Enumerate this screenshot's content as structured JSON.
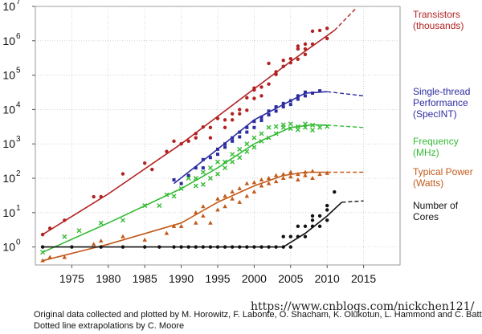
{
  "chart_data": {
    "type": "scatter",
    "y_scale": "log",
    "xlim": [
      1970,
      2020
    ],
    "ylim": [
      0.3,
      10000000
    ],
    "grid": "dotted",
    "legend_placement": "right",
    "x_ticks": [
      "1975",
      "1980",
      "1985",
      "1990",
      "1995",
      "2000",
      "2005",
      "2010",
      "2015"
    ],
    "x_tick_values": [
      1975,
      1980,
      1985,
      1990,
      1995,
      2000,
      2005,
      2010,
      2015
    ],
    "y_ticks": [
      {
        "base": "10",
        "exp": "0",
        "value": 1
      },
      {
        "base": "10",
        "exp": "1",
        "value": 10
      },
      {
        "base": "10",
        "exp": "2",
        "value": 100
      },
      {
        "base": "10",
        "exp": "3",
        "value": 1000
      },
      {
        "base": "10",
        "exp": "4",
        "value": 10000
      },
      {
        "base": "10",
        "exp": "5",
        "value": 100000
      },
      {
        "base": "10",
        "exp": "6",
        "value": 1000000
      },
      {
        "base": "10",
        "exp": "7",
        "value": 10000000
      }
    ],
    "series": [
      {
        "name_lines": [
          "Transistors",
          "(thousands)"
        ],
        "color": "#b22222",
        "marker": "circle",
        "points": [
          [
            1971,
            2.3
          ],
          [
            1972,
            3.5
          ],
          [
            1974,
            6
          ],
          [
            1978,
            29
          ],
          [
            1979,
            29
          ],
          [
            1982,
            134
          ],
          [
            1985,
            275
          ],
          [
            1986,
            180
          ],
          [
            1988,
            600
          ],
          [
            1989,
            1200
          ],
          [
            1990,
            1000
          ],
          [
            1991,
            1200
          ],
          [
            1992,
            2000
          ],
          [
            1992,
            1500
          ],
          [
            1993,
            3100
          ],
          [
            1994,
            1500
          ],
          [
            1994,
            3000
          ],
          [
            1995,
            5500
          ],
          [
            1996,
            3000
          ],
          [
            1996,
            5000
          ],
          [
            1997,
            7500
          ],
          [
            1997,
            5000
          ],
          [
            1998,
            7500
          ],
          [
            1998,
            10000
          ],
          [
            1999,
            9500
          ],
          [
            1999,
            22000
          ],
          [
            2000,
            21000
          ],
          [
            2000,
            37000
          ],
          [
            2000,
            42000
          ],
          [
            2001,
            45000
          ],
          [
            2001,
            25000
          ],
          [
            2002,
            55000
          ],
          [
            2002,
            220000
          ],
          [
            2003,
            105000
          ],
          [
            2003,
            125000
          ],
          [
            2004,
            180000
          ],
          [
            2004,
            270000
          ],
          [
            2005,
            230000
          ],
          [
            2005,
            300000
          ],
          [
            2006,
            290000
          ],
          [
            2006,
            580000
          ],
          [
            2006,
            700000
          ],
          [
            2007,
            400000
          ],
          [
            2007,
            580000
          ],
          [
            2007,
            800000
          ],
          [
            2008,
            800000
          ],
          [
            2008,
            1900000
          ],
          [
            2009,
            2000000
          ],
          [
            2010,
            1170000
          ],
          [
            2010,
            2300000
          ]
        ],
        "fit": [
          [
            1971,
            2.3
          ],
          [
            1980,
            35
          ],
          [
            1990,
            1000
          ],
          [
            2000,
            40000
          ],
          [
            2005,
            250000
          ],
          [
            2011,
            2000000
          ]
        ],
        "extrapolation": [
          [
            2011,
            2000000
          ],
          [
            2014,
            9000000
          ]
        ]
      },
      {
        "name_lines": [
          "Single-thread",
          "Performance",
          "(SpecINT)"
        ],
        "color": "#2c2ca0",
        "marker": "square",
        "points": [
          [
            1989,
            90
          ],
          [
            1990,
            70
          ],
          [
            1991,
            120
          ],
          [
            1992,
            200
          ],
          [
            1993,
            200
          ],
          [
            1993,
            350
          ],
          [
            1994,
            400
          ],
          [
            1995,
            500
          ],
          [
            1995,
            700
          ],
          [
            1996,
            800
          ],
          [
            1996,
            1000
          ],
          [
            1997,
            1200
          ],
          [
            1997,
            1500
          ],
          [
            1998,
            1600
          ],
          [
            1998,
            2200
          ],
          [
            1999,
            2200
          ],
          [
            1999,
            3000
          ],
          [
            2000,
            3000
          ],
          [
            2000,
            4500
          ],
          [
            2001,
            4800
          ],
          [
            2001,
            6000
          ],
          [
            2002,
            7000
          ],
          [
            2002,
            9000
          ],
          [
            2003,
            9000
          ],
          [
            2003,
            12000
          ],
          [
            2004,
            12000
          ],
          [
            2004,
            15000
          ],
          [
            2005,
            14000
          ],
          [
            2005,
            18000
          ],
          [
            2006,
            20000
          ],
          [
            2006,
            25000
          ],
          [
            2007,
            25000
          ],
          [
            2007,
            32000
          ],
          [
            2008,
            30000
          ],
          [
            2009,
            35000
          ]
        ],
        "fit": [
          [
            1989,
            70
          ],
          [
            1995,
            700
          ],
          [
            2000,
            5000
          ],
          [
            2004,
            14000
          ],
          [
            2007,
            30000
          ],
          [
            2010,
            33000
          ]
        ],
        "extrapolation": [
          [
            2010,
            33000
          ],
          [
            2015,
            25000
          ]
        ]
      },
      {
        "name_lines": [
          "Frequency",
          "(MHz)"
        ],
        "color": "#33bb33",
        "marker": "x",
        "points": [
          [
            1971,
            0.7
          ],
          [
            1974,
            2
          ],
          [
            1976,
            3
          ],
          [
            1979,
            5
          ],
          [
            1982,
            6
          ],
          [
            1985,
            16
          ],
          [
            1987,
            16
          ],
          [
            1988,
            33
          ],
          [
            1989,
            30
          ],
          [
            1990,
            50
          ],
          [
            1991,
            100
          ],
          [
            1992,
            60
          ],
          [
            1992,
            100
          ],
          [
            1993,
            66
          ],
          [
            1993,
            150
          ],
          [
            1994,
            100
          ],
          [
            1994,
            200
          ],
          [
            1995,
            133
          ],
          [
            1995,
            300
          ],
          [
            1996,
            200
          ],
          [
            1996,
            300
          ],
          [
            1997,
            300
          ],
          [
            1997,
            500
          ],
          [
            1998,
            400
          ],
          [
            1998,
            700
          ],
          [
            1999,
            600
          ],
          [
            1999,
            1000
          ],
          [
            2000,
            800
          ],
          [
            2000,
            1500
          ],
          [
            2001,
            1200
          ],
          [
            2001,
            2000
          ],
          [
            2002,
            1500
          ],
          [
            2002,
            3000
          ],
          [
            2003,
            2000
          ],
          [
            2003,
            3200
          ],
          [
            2004,
            3000
          ],
          [
            2004,
            3600
          ],
          [
            2005,
            2800
          ],
          [
            2005,
            3800
          ],
          [
            2006,
            2600
          ],
          [
            2006,
            3200
          ],
          [
            2007,
            3000
          ],
          [
            2007,
            3800
          ],
          [
            2008,
            2500
          ],
          [
            2008,
            3500
          ],
          [
            2009,
            3000
          ],
          [
            2010,
            3200
          ]
        ],
        "fit": [
          [
            1971,
            0.7
          ],
          [
            1980,
            5
          ],
          [
            1990,
            50
          ],
          [
            1995,
            200
          ],
          [
            2000,
            1000
          ],
          [
            2005,
            3000
          ],
          [
            2008,
            3600
          ],
          [
            2010,
            3500
          ]
        ],
        "extrapolation": [
          [
            2010,
            3500
          ],
          [
            2015,
            3000
          ]
        ]
      },
      {
        "name_lines": [
          "Typical Power",
          "(Watts)"
        ],
        "color": "#c25a1a",
        "marker": "triangle",
        "points": [
          [
            1971,
            0.4
          ],
          [
            1972,
            0.5
          ],
          [
            1974,
            0.5
          ],
          [
            1978,
            1.2
          ],
          [
            1979,
            1.5
          ],
          [
            1982,
            2
          ],
          [
            1985,
            1.6
          ],
          [
            1988,
            2.5
          ],
          [
            1989,
            4
          ],
          [
            1990,
            4
          ],
          [
            1992,
            5
          ],
          [
            1992,
            10
          ],
          [
            1993,
            8
          ],
          [
            1993,
            15
          ],
          [
            1994,
            5
          ],
          [
            1995,
            12
          ],
          [
            1995,
            25
          ],
          [
            1996,
            15
          ],
          [
            1996,
            30
          ],
          [
            1997,
            25
          ],
          [
            1997,
            40
          ],
          [
            1998,
            20
          ],
          [
            1998,
            50
          ],
          [
            1999,
            30
          ],
          [
            1999,
            70
          ],
          [
            2000,
            40
          ],
          [
            2000,
            75
          ],
          [
            2001,
            60
          ],
          [
            2001,
            90
          ],
          [
            2002,
            70
          ],
          [
            2002,
            100
          ],
          [
            2003,
            80
          ],
          [
            2003,
            120
          ],
          [
            2004,
            100
          ],
          [
            2004,
            130
          ],
          [
            2005,
            110
          ],
          [
            2005,
            150
          ],
          [
            2006,
            90
          ],
          [
            2006,
            130
          ],
          [
            2007,
            120
          ],
          [
            2007,
            150
          ],
          [
            2008,
            100
          ],
          [
            2008,
            160
          ],
          [
            2009,
            130
          ],
          [
            2010,
            140
          ]
        ],
        "fit": [
          [
            1971,
            0.4
          ],
          [
            1980,
            1.2
          ],
          [
            1990,
            5
          ],
          [
            1995,
            20
          ],
          [
            2000,
            60
          ],
          [
            2004,
            120
          ],
          [
            2007,
            150
          ],
          [
            2010,
            150
          ]
        ],
        "extrapolation": [
          [
            2010,
            150
          ],
          [
            2015,
            150
          ]
        ]
      },
      {
        "name_lines": [
          "Number of",
          "Cores"
        ],
        "color": "#111111",
        "marker": "circle",
        "points": [
          [
            1971,
            1
          ],
          [
            1975,
            1
          ],
          [
            1979,
            1
          ],
          [
            1982,
            1
          ],
          [
            1985,
            1
          ],
          [
            1987,
            1
          ],
          [
            1989,
            1
          ],
          [
            1990,
            1
          ],
          [
            1991,
            1
          ],
          [
            1992,
            1
          ],
          [
            1993,
            1
          ],
          [
            1994,
            1
          ],
          [
            1995,
            1
          ],
          [
            1996,
            1
          ],
          [
            1997,
            1
          ],
          [
            1998,
            1
          ],
          [
            1999,
            1
          ],
          [
            2000,
            1
          ],
          [
            2001,
            1
          ],
          [
            2002,
            1
          ],
          [
            2003,
            1
          ],
          [
            2004,
            1
          ],
          [
            2004,
            2
          ],
          [
            2005,
            2
          ],
          [
            2005,
            1
          ],
          [
            2006,
            2
          ],
          [
            2006,
            4
          ],
          [
            2007,
            2
          ],
          [
            2007,
            4
          ],
          [
            2008,
            4
          ],
          [
            2008,
            8
          ],
          [
            2008,
            6
          ],
          [
            2009,
            4
          ],
          [
            2009,
            8
          ],
          [
            2010,
            6
          ],
          [
            2010,
            12
          ],
          [
            2010,
            16
          ],
          [
            2011,
            40
          ]
        ],
        "fit": [
          [
            1971,
            1
          ],
          [
            2000,
            1
          ],
          [
            2004,
            1
          ],
          [
            2007,
            2.5
          ],
          [
            2010,
            8
          ],
          [
            2012,
            20
          ]
        ],
        "extrapolation": [
          [
            2012,
            20
          ],
          [
            2015,
            22
          ]
        ]
      }
    ]
  },
  "footer": {
    "line1": "Original data collected and plotted by M. Horowitz, F. Labonte, O. Shacham, K. Olukotun, L. Hammond and C. Batten",
    "line2": "Dotted line extrapolations by C. Moore"
  },
  "watermark": "https://www.cnblogs.com/nickchen121/"
}
